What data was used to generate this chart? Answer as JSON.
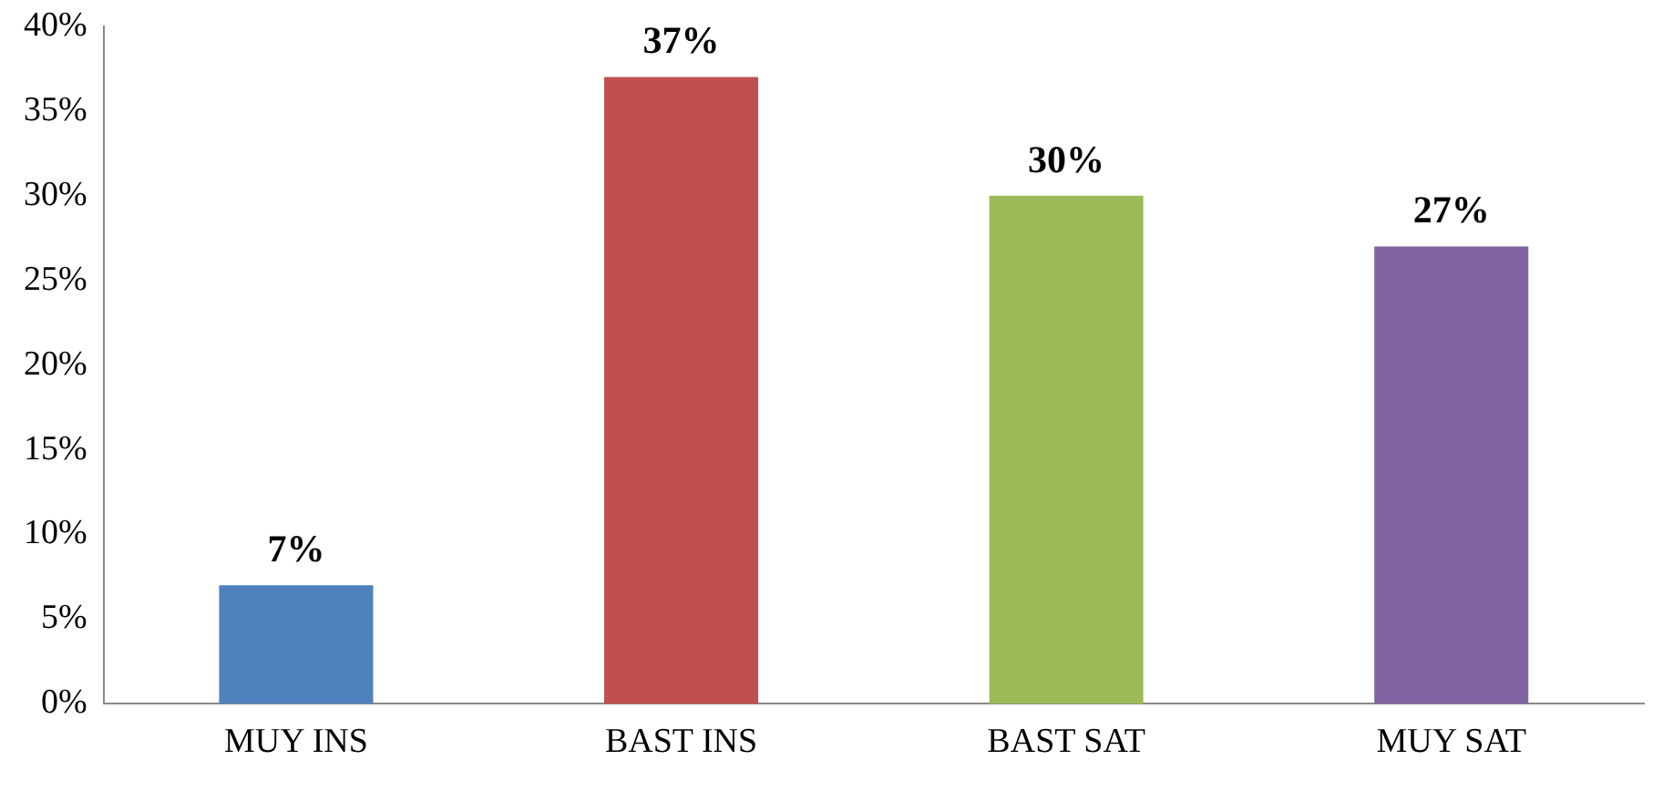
{
  "chart_data": {
    "type": "bar",
    "categories": [
      "MUY INS",
      "BAST INS",
      "BAST SAT",
      "MUY SAT"
    ],
    "values": [
      7,
      37,
      30,
      27
    ],
    "colors": [
      "#4f81bd",
      "#c0504d",
      "#9bbb59",
      "#8064a2"
    ],
    "value_labels": [
      "7%",
      "37%",
      "30%",
      "27%"
    ],
    "ylim": [
      0,
      40
    ],
    "yticks": [
      {
        "value": 0,
        "label": "0%"
      },
      {
        "value": 5,
        "label": "5%"
      },
      {
        "value": 10,
        "label": "10%"
      },
      {
        "value": 15,
        "label": "15%"
      },
      {
        "value": 20,
        "label": "20%"
      },
      {
        "value": 25,
        "label": "25%"
      },
      {
        "value": 30,
        "label": "30%"
      },
      {
        "value": 35,
        "label": "35%"
      },
      {
        "value": 40,
        "label": "40%"
      }
    ],
    "grid": false,
    "legend": false
  }
}
